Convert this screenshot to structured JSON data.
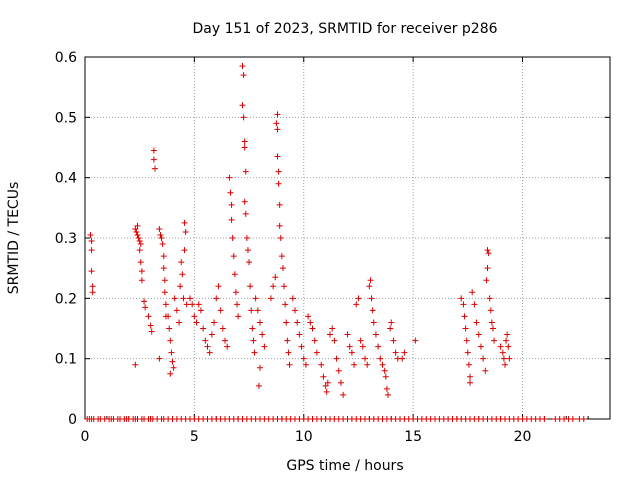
{
  "chart_data": {
    "type": "scatter",
    "title": "Day 151 of 2023, SRMTID for receiver p286",
    "xlabel": "GPS time / hours",
    "ylabel": "SRMTID / TECUs",
    "xlim": [
      0,
      24
    ],
    "ylim": [
      0,
      0.6
    ],
    "xticks": [
      0,
      5,
      10,
      15,
      20
    ],
    "yticks": [
      0,
      0.1,
      0.2,
      0.3,
      0.4,
      0.5,
      0.6
    ],
    "xtick_labels": [
      "0",
      "5",
      "10",
      "15",
      "20"
    ],
    "ytick_labels": [
      "0",
      "0.1",
      "0.2",
      "0.3",
      "0.4",
      "0.5",
      "0.6"
    ],
    "grid": true,
    "marker": "+",
    "color": "#dd0000",
    "series": [
      {
        "name": "p286",
        "points": [
          [
            0.25,
            0.305
          ],
          [
            0.3,
            0.295
          ],
          [
            0.3,
            0.28
          ],
          [
            0.3,
            0.245
          ],
          [
            0.35,
            0.22
          ],
          [
            0.35,
            0.21
          ],
          [
            2.3,
            0.315
          ],
          [
            2.35,
            0.31
          ],
          [
            2.4,
            0.305
          ],
          [
            2.45,
            0.3
          ],
          [
            2.5,
            0.295
          ],
          [
            2.55,
            0.29
          ],
          [
            2.4,
            0.32
          ],
          [
            2.5,
            0.28
          ],
          [
            2.55,
            0.26
          ],
          [
            2.6,
            0.245
          ],
          [
            2.6,
            0.23
          ],
          [
            2.3,
            0.09
          ],
          [
            2.7,
            0.195
          ],
          [
            2.75,
            0.185
          ],
          [
            2.9,
            0.17
          ],
          [
            3.0,
            0.155
          ],
          [
            3.05,
            0.145
          ],
          [
            3.15,
            0.445
          ],
          [
            3.15,
            0.43
          ],
          [
            3.2,
            0.415
          ],
          [
            3.4,
            0.315
          ],
          [
            3.45,
            0.305
          ],
          [
            3.5,
            0.3
          ],
          [
            3.55,
            0.29
          ],
          [
            3.6,
            0.27
          ],
          [
            3.6,
            0.25
          ],
          [
            3.65,
            0.23
          ],
          [
            3.65,
            0.21
          ],
          [
            3.7,
            0.19
          ],
          [
            3.7,
            0.17
          ],
          [
            3.4,
            0.1
          ],
          [
            3.8,
            0.17
          ],
          [
            3.85,
            0.15
          ],
          [
            3.9,
            0.13
          ],
          [
            3.95,
            0.11
          ],
          [
            4.0,
            0.095
          ],
          [
            3.9,
            0.075
          ],
          [
            4.05,
            0.085
          ],
          [
            4.1,
            0.2
          ],
          [
            4.2,
            0.18
          ],
          [
            4.3,
            0.16
          ],
          [
            4.35,
            0.22
          ],
          [
            4.4,
            0.26
          ],
          [
            4.45,
            0.24
          ],
          [
            4.5,
            0.2
          ],
          [
            4.55,
            0.28
          ],
          [
            4.55,
            0.325
          ],
          [
            4.6,
            0.31
          ],
          [
            4.65,
            0.19
          ],
          [
            4.8,
            0.2
          ],
          [
            4.9,
            0.19
          ],
          [
            5.0,
            0.17
          ],
          [
            5.1,
            0.16
          ],
          [
            5.2,
            0.19
          ],
          [
            5.3,
            0.18
          ],
          [
            5.4,
            0.15
          ],
          [
            5.5,
            0.13
          ],
          [
            5.6,
            0.12
          ],
          [
            5.7,
            0.11
          ],
          [
            5.8,
            0.14
          ],
          [
            5.9,
            0.16
          ],
          [
            6.0,
            0.2
          ],
          [
            6.1,
            0.22
          ],
          [
            6.2,
            0.18
          ],
          [
            6.3,
            0.15
          ],
          [
            6.4,
            0.13
          ],
          [
            6.5,
            0.12
          ],
          [
            6.6,
            0.4
          ],
          [
            6.65,
            0.375
          ],
          [
            6.7,
            0.355
          ],
          [
            6.7,
            0.33
          ],
          [
            6.75,
            0.3
          ],
          [
            6.8,
            0.27
          ],
          [
            6.85,
            0.24
          ],
          [
            6.9,
            0.21
          ],
          [
            6.95,
            0.19
          ],
          [
            7.0,
            0.17
          ],
          [
            7.2,
            0.585
          ],
          [
            7.25,
            0.57
          ],
          [
            7.2,
            0.52
          ],
          [
            7.25,
            0.5
          ],
          [
            7.3,
            0.46
          ],
          [
            7.3,
            0.45
          ],
          [
            7.35,
            0.41
          ],
          [
            7.3,
            0.36
          ],
          [
            7.35,
            0.34
          ],
          [
            7.4,
            0.3
          ],
          [
            7.45,
            0.28
          ],
          [
            7.5,
            0.26
          ],
          [
            7.55,
            0.22
          ],
          [
            7.6,
            0.18
          ],
          [
            7.65,
            0.15
          ],
          [
            7.7,
            0.13
          ],
          [
            7.75,
            0.11
          ],
          [
            7.8,
            0.2
          ],
          [
            7.9,
            0.18
          ],
          [
            8.0,
            0.16
          ],
          [
            8.1,
            0.14
          ],
          [
            8.2,
            0.12
          ],
          [
            8.0,
            0.085
          ],
          [
            7.95,
            0.055
          ],
          [
            8.5,
            0.2
          ],
          [
            8.6,
            0.22
          ],
          [
            8.7,
            0.235
          ],
          [
            8.75,
            0.49
          ],
          [
            8.8,
            0.505
          ],
          [
            8.8,
            0.48
          ],
          [
            8.8,
            0.435
          ],
          [
            8.85,
            0.41
          ],
          [
            8.85,
            0.39
          ],
          [
            8.9,
            0.355
          ],
          [
            8.9,
            0.32
          ],
          [
            8.95,
            0.3
          ],
          [
            9.0,
            0.27
          ],
          [
            9.05,
            0.25
          ],
          [
            9.1,
            0.22
          ],
          [
            9.15,
            0.19
          ],
          [
            9.2,
            0.16
          ],
          [
            9.25,
            0.13
          ],
          [
            9.3,
            0.11
          ],
          [
            9.35,
            0.09
          ],
          [
            9.5,
            0.2
          ],
          [
            9.6,
            0.18
          ],
          [
            9.7,
            0.16
          ],
          [
            9.8,
            0.14
          ],
          [
            9.9,
            0.12
          ],
          [
            10.0,
            0.1
          ],
          [
            10.1,
            0.09
          ],
          [
            10.2,
            0.17
          ],
          [
            10.3,
            0.16
          ],
          [
            10.4,
            0.15
          ],
          [
            10.5,
            0.13
          ],
          [
            10.6,
            0.11
          ],
          [
            10.8,
            0.09
          ],
          [
            10.9,
            0.07
          ],
          [
            11.0,
            0.055
          ],
          [
            11.05,
            0.045
          ],
          [
            11.1,
            0.06
          ],
          [
            11.2,
            0.14
          ],
          [
            11.3,
            0.15
          ],
          [
            11.4,
            0.13
          ],
          [
            11.5,
            0.1
          ],
          [
            11.6,
            0.08
          ],
          [
            11.7,
            0.06
          ],
          [
            11.8,
            0.04
          ],
          [
            12.0,
            0.14
          ],
          [
            12.1,
            0.12
          ],
          [
            12.2,
            0.11
          ],
          [
            12.3,
            0.09
          ],
          [
            12.4,
            0.19
          ],
          [
            12.5,
            0.2
          ],
          [
            12.6,
            0.13
          ],
          [
            12.7,
            0.12
          ],
          [
            12.8,
            0.1
          ],
          [
            12.9,
            0.09
          ],
          [
            13.0,
            0.22
          ],
          [
            13.05,
            0.23
          ],
          [
            13.1,
            0.2
          ],
          [
            13.15,
            0.18
          ],
          [
            13.2,
            0.16
          ],
          [
            13.3,
            0.14
          ],
          [
            13.4,
            0.12
          ],
          [
            13.5,
            0.1
          ],
          [
            13.6,
            0.09
          ],
          [
            13.7,
            0.08
          ],
          [
            13.75,
            0.07
          ],
          [
            13.8,
            0.05
          ],
          [
            13.85,
            0.04
          ],
          [
            13.95,
            0.15
          ],
          [
            14.0,
            0.16
          ],
          [
            14.1,
            0.13
          ],
          [
            14.2,
            0.11
          ],
          [
            14.3,
            0.1
          ],
          [
            14.5,
            0.1
          ],
          [
            14.6,
            0.11
          ],
          [
            15.1,
            0.13
          ],
          [
            17.2,
            0.2
          ],
          [
            17.3,
            0.19
          ],
          [
            17.35,
            0.17
          ],
          [
            17.4,
            0.15
          ],
          [
            17.45,
            0.13
          ],
          [
            17.5,
            0.11
          ],
          [
            17.55,
            0.09
          ],
          [
            17.6,
            0.07
          ],
          [
            17.6,
            0.06
          ],
          [
            17.7,
            0.21
          ],
          [
            17.8,
            0.19
          ],
          [
            17.9,
            0.16
          ],
          [
            18.0,
            0.14
          ],
          [
            18.1,
            0.12
          ],
          [
            18.2,
            0.1
          ],
          [
            18.3,
            0.08
          ],
          [
            18.4,
            0.28
          ],
          [
            18.45,
            0.275
          ],
          [
            18.4,
            0.25
          ],
          [
            18.35,
            0.23
          ],
          [
            18.5,
            0.2
          ],
          [
            18.55,
            0.18
          ],
          [
            18.6,
            0.16
          ],
          [
            18.65,
            0.15
          ],
          [
            18.7,
            0.13
          ],
          [
            19.0,
            0.12
          ],
          [
            19.1,
            0.11
          ],
          [
            19.15,
            0.1
          ],
          [
            19.2,
            0.09
          ],
          [
            19.25,
            0.13
          ],
          [
            19.3,
            0.14
          ],
          [
            19.35,
            0.12
          ],
          [
            19.4,
            0.1
          ]
        ]
      }
    ],
    "zero_row_x": [
      0.1,
      0.2,
      0.3,
      0.4,
      0.6,
      0.7,
      0.9,
      1.1,
      1.2,
      1.3,
      1.5,
      1.6,
      1.8,
      1.9,
      2.0,
      2.2,
      2.3,
      2.4,
      2.6,
      2.7,
      2.9,
      3.0,
      3.1,
      3.3,
      3.5,
      3.6,
      3.8,
      4.0,
      4.2,
      4.4,
      4.6,
      4.8,
      5.0,
      5.2,
      5.4,
      5.6,
      5.8,
      6.0,
      6.2,
      6.4,
      6.6,
      6.8,
      7.0,
      7.2,
      7.4,
      7.6,
      7.8,
      8.0,
      8.2,
      8.4,
      8.6,
      8.8,
      9.0,
      9.2,
      9.4,
      9.6,
      9.8,
      10.0,
      10.2,
      10.4,
      10.6,
      10.8,
      11.0,
      11.2,
      11.4,
      11.6,
      11.8,
      12.0,
      12.2,
      12.4,
      12.6,
      12.8,
      13.0,
      13.2,
      13.4,
      13.6,
      13.8,
      14.0,
      14.2,
      14.4,
      14.6,
      14.8,
      15.0,
      15.2,
      15.4,
      15.6,
      15.8,
      16.0,
      16.2,
      16.4,
      16.6,
      16.8,
      17.0,
      17.2,
      17.4,
      17.6,
      17.8,
      18.0,
      18.2,
      18.4,
      18.6,
      18.8,
      19.0,
      19.2,
      19.4,
      19.6,
      19.8,
      20.0,
      20.2,
      20.4,
      20.6,
      20.8,
      21.0,
      21.5,
      21.7,
      21.9,
      22.1,
      22.3,
      22.6,
      22.8
    ]
  }
}
